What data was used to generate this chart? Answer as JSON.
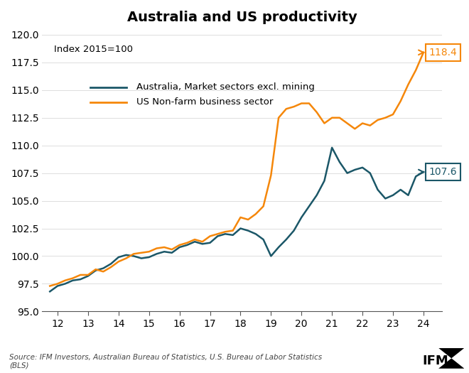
{
  "title": "Australia and US productivity",
  "subtitle": "Index 2015=100",
  "source_text": "Source: IFM Investors, Australian Bureau of Statistics, U.S. Bureau of Labor Statistics\n(BLS)",
  "australia_color": "#1b5768",
  "us_color": "#f5870a",
  "australia_label": "Australia, Market sectors excl. mining",
  "us_label": "US Non-farm business sector",
  "australia_end_value": "107.6",
  "us_end_value": "118.4",
  "ylim": [
    95.0,
    120.5
  ],
  "yticks": [
    95.0,
    97.5,
    100.0,
    102.5,
    105.0,
    107.5,
    110.0,
    112.5,
    115.0,
    117.5,
    120.0
  ],
  "xticks": [
    12,
    13,
    14,
    15,
    16,
    17,
    18,
    19,
    20,
    21,
    22,
    23,
    24
  ],
  "xlim": [
    11.5,
    24.6
  ],
  "australia_x": [
    11.75,
    12.0,
    12.25,
    12.5,
    12.75,
    13.0,
    13.25,
    13.5,
    13.75,
    14.0,
    14.25,
    14.5,
    14.75,
    15.0,
    15.25,
    15.5,
    15.75,
    16.0,
    16.25,
    16.5,
    16.75,
    17.0,
    17.25,
    17.5,
    17.75,
    18.0,
    18.25,
    18.5,
    18.75,
    19.0,
    19.25,
    19.5,
    19.75,
    20.0,
    20.25,
    20.5,
    20.75,
    21.0,
    21.25,
    21.5,
    21.75,
    22.0,
    22.25,
    22.5,
    22.75,
    23.0,
    23.25,
    23.5,
    23.75,
    24.0
  ],
  "australia_y": [
    96.8,
    97.3,
    97.5,
    97.8,
    97.9,
    98.2,
    98.7,
    98.9,
    99.3,
    99.9,
    100.1,
    100.0,
    99.8,
    99.9,
    100.2,
    100.4,
    100.3,
    100.8,
    101.0,
    101.3,
    101.1,
    101.2,
    101.8,
    102.0,
    101.9,
    102.5,
    102.3,
    102.0,
    101.5,
    100.0,
    100.8,
    101.5,
    102.3,
    103.5,
    104.5,
    105.5,
    106.8,
    109.8,
    108.5,
    107.5,
    107.8,
    108.0,
    107.5,
    106.0,
    105.2,
    105.5,
    106.0,
    105.5,
    107.2,
    107.6
  ],
  "us_x": [
    11.75,
    12.0,
    12.25,
    12.5,
    12.75,
    13.0,
    13.25,
    13.5,
    13.75,
    14.0,
    14.25,
    14.5,
    14.75,
    15.0,
    15.25,
    15.5,
    15.75,
    16.0,
    16.25,
    16.5,
    16.75,
    17.0,
    17.25,
    17.5,
    17.75,
    18.0,
    18.25,
    18.5,
    18.75,
    19.0,
    19.25,
    19.5,
    19.75,
    20.0,
    20.25,
    20.5,
    20.75,
    21.0,
    21.25,
    21.5,
    21.75,
    22.0,
    22.25,
    22.5,
    22.75,
    23.0,
    23.25,
    23.5,
    23.75,
    24.0
  ],
  "us_y": [
    97.3,
    97.5,
    97.8,
    98.0,
    98.3,
    98.3,
    98.8,
    98.6,
    99.0,
    99.5,
    99.8,
    100.2,
    100.3,
    100.4,
    100.7,
    100.8,
    100.6,
    101.0,
    101.2,
    101.5,
    101.3,
    101.8,
    102.0,
    102.2,
    102.3,
    103.5,
    103.3,
    103.8,
    104.5,
    107.3,
    112.5,
    113.3,
    113.5,
    113.8,
    113.8,
    113.0,
    112.0,
    112.5,
    112.5,
    112.0,
    111.5,
    112.0,
    111.8,
    112.3,
    112.5,
    112.8,
    114.0,
    115.5,
    116.8,
    118.4
  ]
}
